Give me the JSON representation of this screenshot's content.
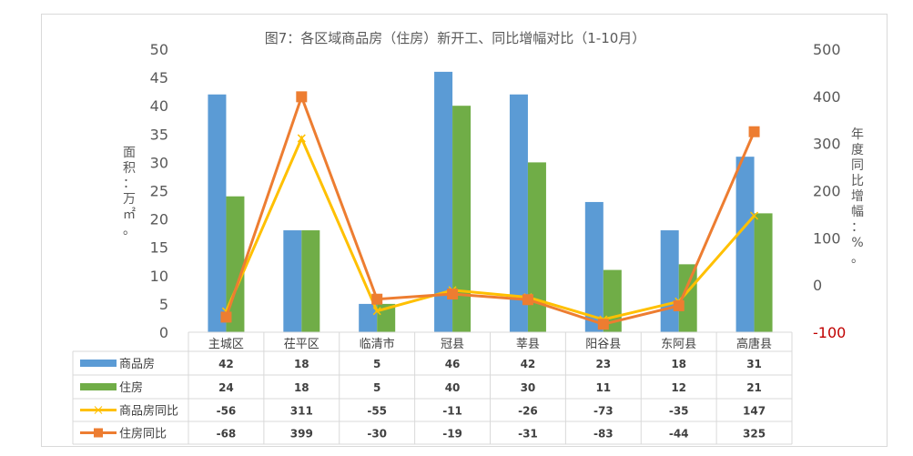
{
  "chart_data": {
    "type": "bar+line",
    "title": "图7：各区域商品房（住房）新开工、同比增幅对比（1-10月）",
    "ylabel": "面积：万㎡。",
    "y2label": "年度同比增幅：%。",
    "ylim": [
      0,
      50
    ],
    "y2lim": [
      -100,
      500
    ],
    "yticks": [
      0,
      5,
      10,
      15,
      20,
      25,
      30,
      35,
      40,
      45,
      50
    ],
    "y2ticks": [
      -100,
      0,
      100,
      200,
      300,
      400,
      500
    ],
    "categories": [
      "主城区",
      "茌平区",
      "临清市",
      "冠县",
      "莘县",
      "阳谷县",
      "东阿县",
      "高唐县"
    ],
    "series": [
      {
        "name": "商品房",
        "type": "bar",
        "axis": "left",
        "color": "#5b9bd5",
        "values": [
          42,
          18,
          5,
          46,
          42,
          23,
          18,
          31
        ]
      },
      {
        "name": "住房",
        "type": "bar",
        "axis": "left",
        "color": "#70ad47",
        "values": [
          24,
          18,
          5,
          40,
          30,
          11,
          12,
          21
        ]
      },
      {
        "name": "商品房同比",
        "type": "line",
        "axis": "right",
        "marker": "x",
        "color": "#ffc000",
        "values": [
          -56,
          311,
          -55,
          -11,
          -26,
          -73,
          -35,
          147
        ]
      },
      {
        "name": "住房同比",
        "type": "line",
        "axis": "right",
        "marker": "square",
        "color": "#ed7d31",
        "values": [
          -68,
          399,
          -30,
          -19,
          -31,
          -83,
          -44,
          325
        ]
      }
    ],
    "data_table": true,
    "grid": false
  }
}
